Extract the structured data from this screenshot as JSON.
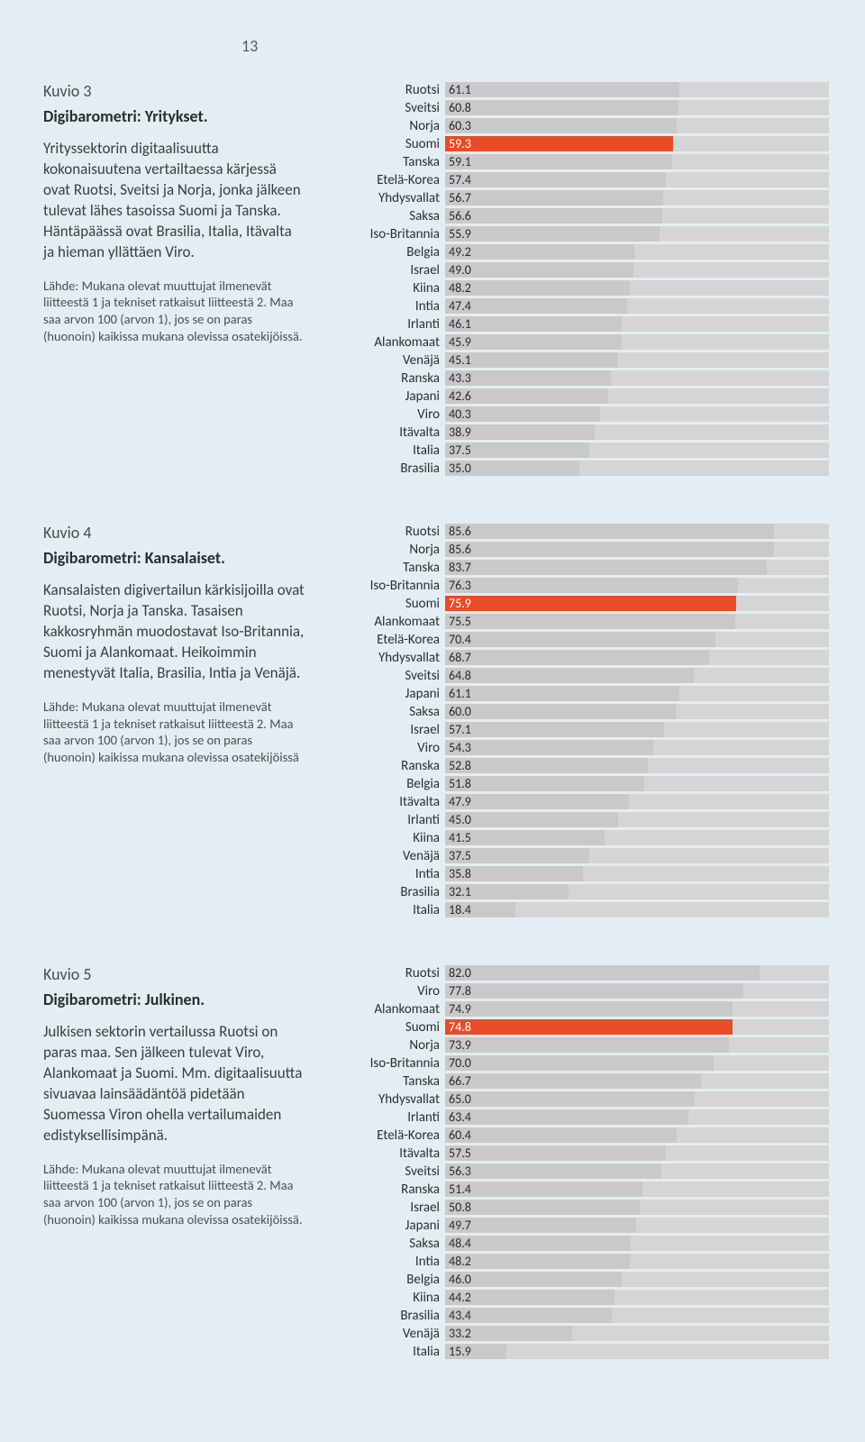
{
  "page_number": "13",
  "colors": {
    "background": "#e2eef3",
    "bar_bg": "#d5d5d5",
    "bar_normal": "#c9c9c9",
    "bar_highlight": "#e84c28",
    "value_normal": "#2a2a2a",
    "value_highlight": "#ffffff"
  },
  "chart_xmax": 100,
  "sections": [
    {
      "kuvio": "Kuvio 3",
      "title": "Digibarometri: Yritykset.",
      "desc": "Yrityssektorin digitaalisuutta kokonaisuutena vertailtaessa kärjessä ovat Ruotsi, Sveitsi ja Norja, jonka jälkeen tulevat lähes tasoissa Suomi ja Tanska. Häntäpäässä ovat Brasilia, Italia, Itävalta ja hieman yllättäen Viro.",
      "source": "Lähde: Mukana olevat muuttujat ilmenevät liitteestä 1 ja tekniset ratkaisut liitteestä 2. Maa saa arvon 100 (arvon 1), jos se on paras (huonoin) kaikissa mukana olevissa osatekijöissä.",
      "highlight": "Suomi",
      "rows": [
        {
          "label": "Ruotsi",
          "value": 61.1
        },
        {
          "label": "Sveitsi",
          "value": 60.8
        },
        {
          "label": "Norja",
          "value": 60.3
        },
        {
          "label": "Suomi",
          "value": 59.3
        },
        {
          "label": "Tanska",
          "value": 59.1
        },
        {
          "label": "Etelä-Korea",
          "value": 57.4
        },
        {
          "label": "Yhdysvallat",
          "value": 56.7
        },
        {
          "label": "Saksa",
          "value": 56.6
        },
        {
          "label": "Iso-Britannia",
          "value": 55.9
        },
        {
          "label": "Belgia",
          "value": 49.2
        },
        {
          "label": "Israel",
          "value": 49.0
        },
        {
          "label": "Kiina",
          "value": 48.2
        },
        {
          "label": "Intia",
          "value": 47.4
        },
        {
          "label": "Irlanti",
          "value": 46.1
        },
        {
          "label": "Alankomaat",
          "value": 45.9
        },
        {
          "label": "Venäjä",
          "value": 45.1
        },
        {
          "label": "Ranska",
          "value": 43.3
        },
        {
          "label": "Japani",
          "value": 42.6
        },
        {
          "label": "Viro",
          "value": 40.3
        },
        {
          "label": "Itävalta",
          "value": 38.9
        },
        {
          "label": "Italia",
          "value": 37.5
        },
        {
          "label": "Brasilia",
          "value": 35.0
        }
      ]
    },
    {
      "kuvio": "Kuvio 4",
      "title": "Digibarometri: Kansalaiset.",
      "desc": "Kansalaisten digivertailun kärkisijoilla ovat Ruotsi, Norja ja Tanska. Tasaisen kakkosryhmän muodostavat Iso-Britannia, Suomi ja Alankomaat. Heikoimmin menestyvät Italia, Brasilia, Intia ja Venäjä.",
      "source": "Lähde: Mukana olevat muuttujat ilmenevät liitteestä 1 ja tekniset ratkaisut liitteestä 2. Maa saa arvon 100 (arvon 1), jos se on paras (huonoin) kaikissa mukana olevissa osatekijöissä",
      "highlight": "Suomi",
      "rows": [
        {
          "label": "Ruotsi",
          "value": 85.6
        },
        {
          "label": "Norja",
          "value": 85.6
        },
        {
          "label": "Tanska",
          "value": 83.7
        },
        {
          "label": "Iso-Britannia",
          "value": 76.3
        },
        {
          "label": "Suomi",
          "value": 75.9
        },
        {
          "label": "Alankomaat",
          "value": 75.5
        },
        {
          "label": "Etelä-Korea",
          "value": 70.4
        },
        {
          "label": "Yhdysvallat",
          "value": 68.7
        },
        {
          "label": "Sveitsi",
          "value": 64.8
        },
        {
          "label": "Japani",
          "value": 61.1
        },
        {
          "label": "Saksa",
          "value": 60.0
        },
        {
          "label": "Israel",
          "value": 57.1
        },
        {
          "label": "Viro",
          "value": 54.3
        },
        {
          "label": "Ranska",
          "value": 52.8
        },
        {
          "label": "Belgia",
          "value": 51.8
        },
        {
          "label": "Itävalta",
          "value": 47.9
        },
        {
          "label": "Irlanti",
          "value": 45.0
        },
        {
          "label": "Kiina",
          "value": 41.5
        },
        {
          "label": "Venäjä",
          "value": 37.5
        },
        {
          "label": "Intia",
          "value": 35.8
        },
        {
          "label": "Brasilia",
          "value": 32.1
        },
        {
          "label": "Italia",
          "value": 18.4
        }
      ]
    },
    {
      "kuvio": "Kuvio 5",
      "title": "Digibarometri: Julkinen.",
      "desc": "Julkisen sektorin vertailussa Ruotsi on paras maa. Sen jälkeen tulevat Viro, Alankomaat ja Suomi. Mm. digitaalisuutta sivuavaa lainsäädäntöä pidetään Suomessa Viron ohella vertailumaiden edistyksellisimpänä.",
      "source": "Lähde: Mukana olevat muuttujat ilmenevät liitteestä 1 ja tekniset ratkaisut liitteestä 2. Maa saa arvon 100 (arvon 1), jos se on paras (huonoin) kaikissa mukana olevissa osatekijöissä.",
      "highlight": "Suomi",
      "rows": [
        {
          "label": "Ruotsi",
          "value": 82.0
        },
        {
          "label": "Viro",
          "value": 77.8
        },
        {
          "label": "Alankomaat",
          "value": 74.9
        },
        {
          "label": "Suomi",
          "value": 74.8
        },
        {
          "label": "Norja",
          "value": 73.9
        },
        {
          "label": "Iso-Britannia",
          "value": 70.0
        },
        {
          "label": "Tanska",
          "value": 66.7
        },
        {
          "label": "Yhdysvallat",
          "value": 65.0
        },
        {
          "label": "Irlanti",
          "value": 63.4
        },
        {
          "label": "Etelä-Korea",
          "value": 60.4
        },
        {
          "label": "Itävalta",
          "value": 57.5
        },
        {
          "label": "Sveitsi",
          "value": 56.3
        },
        {
          "label": "Ranska",
          "value": 51.4
        },
        {
          "label": "Israel",
          "value": 50.8
        },
        {
          "label": "Japani",
          "value": 49.7
        },
        {
          "label": "Saksa",
          "value": 48.4
        },
        {
          "label": "Intia",
          "value": 48.2
        },
        {
          "label": "Belgia",
          "value": 46.0
        },
        {
          "label": "Kiina",
          "value": 44.2
        },
        {
          "label": "Brasilia",
          "value": 43.4
        },
        {
          "label": "Venäjä",
          "value": 33.2
        },
        {
          "label": "Italia",
          "value": 15.9
        }
      ]
    }
  ]
}
